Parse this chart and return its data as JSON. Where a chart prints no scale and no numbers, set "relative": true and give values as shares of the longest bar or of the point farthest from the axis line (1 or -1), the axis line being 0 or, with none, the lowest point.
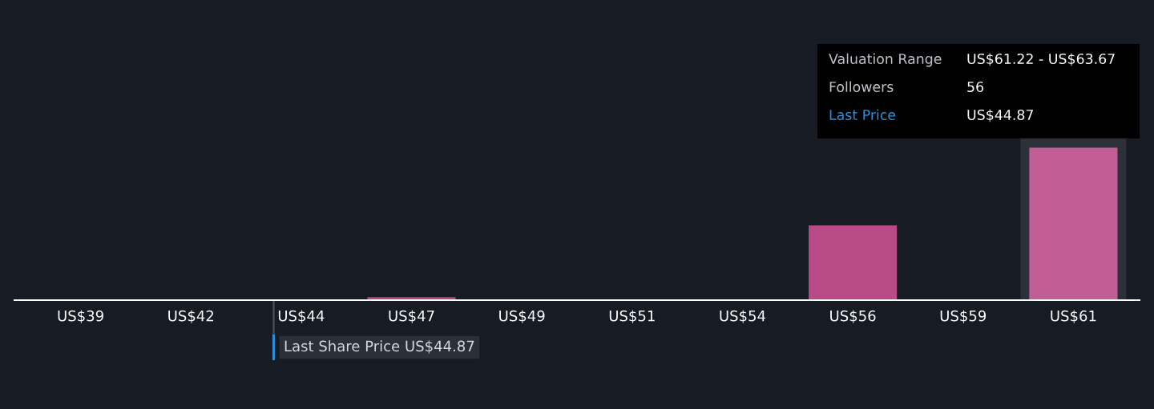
{
  "chart_data": {
    "type": "bar",
    "relative": true,
    "categories": [
      "US$39",
      "US$42",
      "US$44",
      "US$47",
      "US$49",
      "US$51",
      "US$54",
      "US$56",
      "US$59",
      "US$61"
    ],
    "values": [
      0,
      0,
      0,
      0.02,
      0,
      0,
      0,
      0.49,
      0,
      1
    ],
    "colors": [
      "#b94a87",
      "#b94a87",
      "#b94a87",
      "#b94a87",
      "#b94a87",
      "#b94a87",
      "#b94a87",
      "#b94a87",
      "#b94a87",
      "#c25e96"
    ],
    "ref_lines": [
      {
        "axis": "x",
        "value": "US$44",
        "label": "Last Share Price US$44.87",
        "color": "#2a8fd9"
      }
    ],
    "bands": [
      {
        "axis": "x",
        "from": "US$61",
        "to": "US$61",
        "color": "#2b3039"
      }
    ],
    "annotations": [
      "Valuation Range",
      "US$61.22 - US$63.67",
      "Followers",
      "56",
      "Last Price",
      "US$44.87"
    ]
  }
}
